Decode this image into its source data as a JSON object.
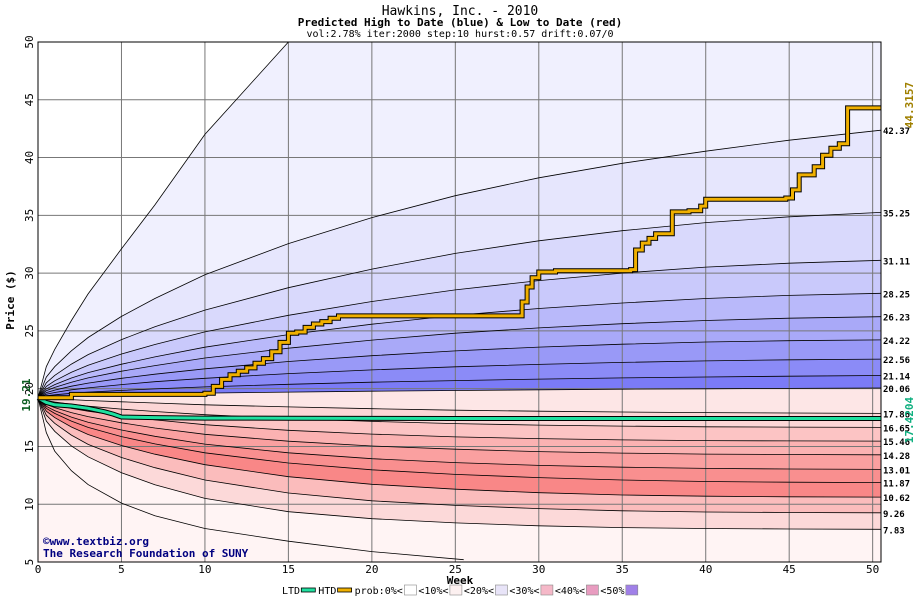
{
  "chart_data": {
    "type": "area",
    "title": "Hawkins, Inc. - 2010",
    "subtitle": "Predicted High to Date (blue) &  Low to Date (red)",
    "params": "vol:2.78% iter:2000 step:10 hurst:0.57 drift:0.07/0",
    "xlabel": "Week",
    "ylabel": "Price ($)",
    "xlim": [
      0,
      50.5
    ],
    "ylim": [
      5,
      50
    ],
    "x_ticks": [
      0,
      5,
      10,
      15,
      20,
      25,
      30,
      35,
      40,
      45,
      50
    ],
    "y_ticks": [
      5,
      10,
      15,
      20,
      25,
      30,
      35,
      40,
      45,
      50
    ],
    "grid": true,
    "start_price": "19.21",
    "htd_final": "44.3157",
    "ltd_final": "17.4204",
    "x_series": [
      0,
      0.5,
      1,
      2,
      3,
      5,
      7,
      10,
      15,
      20,
      25,
      30,
      35,
      40,
      45,
      50.5
    ],
    "high_bands": [
      {
        "end_label": "20.06",
        "values": [
          19.21,
          19.28,
          19.32,
          19.38,
          19.43,
          19.5,
          19.56,
          19.62,
          19.7,
          19.78,
          19.84,
          19.9,
          19.95,
          19.99,
          20.02,
          20.06
        ]
      },
      {
        "end_label": "21.14",
        "values": [
          19.21,
          19.38,
          19.47,
          19.6,
          19.7,
          19.85,
          19.98,
          20.15,
          20.38,
          20.56,
          20.7,
          20.83,
          20.93,
          21.01,
          21.08,
          21.14
        ]
      },
      {
        "end_label": "22.56",
        "values": [
          19.21,
          19.52,
          19.67,
          19.9,
          20.07,
          20.35,
          20.6,
          20.9,
          21.3,
          21.62,
          21.89,
          22.1,
          22.27,
          22.4,
          22.5,
          22.56
        ]
      },
      {
        "end_label": "24.22",
        "values": [
          19.21,
          19.66,
          19.88,
          20.21,
          20.48,
          20.9,
          21.25,
          21.72,
          22.35,
          22.85,
          23.27,
          23.6,
          23.85,
          24.04,
          24.15,
          24.22
        ]
      },
      {
        "end_label": "26.23",
        "values": [
          19.21,
          19.82,
          20.11,
          20.56,
          20.93,
          21.51,
          22.0,
          22.65,
          23.5,
          24.2,
          24.8,
          25.26,
          25.62,
          25.9,
          26.1,
          26.23
        ]
      },
      {
        "end_label": "28.25",
        "values": [
          19.21,
          19.98,
          20.35,
          20.92,
          21.39,
          22.12,
          22.75,
          23.59,
          24.68,
          25.58,
          26.34,
          26.94,
          27.41,
          27.8,
          28.07,
          28.25
        ]
      },
      {
        "end_label": "31.11",
        "values": [
          19.21,
          20.2,
          20.68,
          21.42,
          22.03,
          23.0,
          23.82,
          24.91,
          26.35,
          27.54,
          28.55,
          29.35,
          30.0,
          30.52,
          30.86,
          31.11
        ]
      },
      {
        "end_label": "35.25",
        "values": [
          19.21,
          20.51,
          21.15,
          22.13,
          22.95,
          24.25,
          25.35,
          26.8,
          28.74,
          30.35,
          31.71,
          32.8,
          33.67,
          34.37,
          34.87,
          35.25
        ]
      },
      {
        "end_label": "42.37",
        "values": [
          19.21,
          21.0,
          21.9,
          23.28,
          24.43,
          26.25,
          27.8,
          29.85,
          32.55,
          34.8,
          36.7,
          38.25,
          39.5,
          40.55,
          41.5,
          42.37
        ]
      },
      {
        "end_label": "",
        "values": [
          19.21,
          21.9,
          23.4,
          25.9,
          28.2,
          32.1,
          35.9,
          42.0,
          50.0,
          50.0,
          50.0,
          50.0,
          50.0,
          50.0,
          50.0,
          50.0
        ]
      }
    ],
    "low_bands": [
      {
        "end_label": "17.86",
        "values": [
          19.21,
          19.15,
          19.12,
          19.05,
          18.98,
          18.86,
          18.76,
          18.6,
          18.42,
          18.27,
          18.14,
          18.05,
          17.98,
          17.93,
          17.89,
          17.86
        ]
      },
      {
        "end_label": "16.65",
        "values": [
          19.21,
          18.98,
          18.85,
          18.65,
          18.48,
          18.23,
          18.02,
          17.75,
          17.42,
          17.17,
          16.98,
          16.85,
          16.76,
          16.7,
          16.67,
          16.65
        ]
      },
      {
        "end_label": "15.46",
        "values": [
          19.21,
          18.82,
          18.62,
          18.3,
          18.05,
          17.65,
          17.3,
          16.88,
          16.4,
          16.07,
          15.83,
          15.68,
          15.57,
          15.51,
          15.48,
          15.46
        ]
      },
      {
        "end_label": "14.28",
        "values": [
          19.21,
          18.65,
          18.36,
          17.93,
          17.58,
          17.05,
          16.6,
          16.05,
          15.45,
          15.04,
          14.76,
          14.55,
          14.42,
          14.34,
          14.3,
          14.28
        ]
      },
      {
        "end_label": "13.01",
        "values": [
          19.21,
          18.47,
          18.1,
          17.54,
          17.09,
          16.42,
          15.88,
          15.2,
          14.45,
          13.94,
          13.6,
          13.36,
          13.2,
          13.1,
          13.05,
          13.01
        ]
      },
      {
        "end_label": "11.87",
        "values": [
          19.21,
          18.3,
          17.86,
          17.19,
          16.65,
          15.85,
          15.22,
          14.45,
          13.57,
          12.98,
          12.58,
          12.3,
          12.1,
          11.97,
          11.91,
          11.87
        ]
      },
      {
        "end_label": "10.62",
        "values": [
          19.21,
          18.05,
          17.5,
          16.68,
          16.03,
          15.08,
          14.33,
          13.42,
          12.38,
          11.72,
          11.3,
          11.0,
          10.8,
          10.69,
          10.64,
          10.62
        ]
      },
      {
        "end_label": "9.26",
        "values": [
          19.21,
          17.7,
          17.0,
          15.98,
          15.18,
          14.04,
          13.16,
          12.1,
          10.97,
          10.3,
          9.9,
          9.62,
          9.43,
          9.33,
          9.28,
          9.26
        ]
      },
      {
        "end_label": "7.83",
        "values": [
          19.21,
          17.2,
          16.31,
          15.05,
          14.1,
          12.73,
          11.68,
          10.5,
          9.35,
          8.75,
          8.38,
          8.13,
          7.98,
          7.9,
          7.86,
          7.83
        ]
      }
    ],
    "low_outer": {
      "x": [
        0,
        0.5,
        1,
        2,
        3,
        5,
        7,
        10,
        15,
        20,
        25.5
      ],
      "values": [
        19.21,
        16.2,
        14.6,
        12.9,
        11.7,
        10.1,
        9.0,
        7.9,
        6.8,
        5.9,
        5.2
      ]
    },
    "htd_path": {
      "x": [
        0,
        2,
        10,
        10.5,
        11,
        11.5,
        12,
        12.5,
        13,
        13.5,
        14,
        14.5,
        15,
        15.5,
        16,
        16.5,
        17,
        17.5,
        18,
        22,
        26,
        28.5,
        29,
        29.3,
        29.6,
        30,
        31,
        33,
        35.5,
        35.8,
        36.2,
        36.6,
        37,
        38,
        39,
        39.7,
        40,
        44.8,
        45.2,
        45.6,
        46.5,
        47,
        47.5,
        48,
        48.5,
        50.5
      ],
      "values": [
        19.21,
        19.5,
        19.6,
        20.2,
        20.8,
        21.2,
        21.5,
        21.8,
        22.2,
        22.6,
        23.2,
        24.0,
        24.8,
        24.9,
        25.3,
        25.6,
        25.8,
        26.1,
        26.3,
        26.3,
        26.3,
        26.3,
        27.5,
        28.8,
        29.6,
        30.1,
        30.2,
        30.2,
        30.3,
        32.0,
        32.6,
        33.0,
        33.4,
        35.3,
        35.4,
        35.8,
        36.4,
        36.5,
        37.2,
        38.5,
        39.2,
        40.2,
        40.8,
        41.2,
        44.3,
        44.3
      ]
    },
    "ltd_path": {
      "x": [
        0,
        0.5,
        1,
        2,
        3,
        4,
        4.5,
        5,
        7,
        10,
        15,
        20,
        25,
        30,
        35,
        40,
        45,
        50.5
      ],
      "values": [
        19.21,
        18.8,
        18.6,
        18.5,
        18.3,
        18.0,
        17.8,
        17.55,
        17.5,
        17.45,
        17.44,
        17.43,
        17.42,
        17.42,
        17.42,
        17.42,
        17.42,
        17.42
      ]
    },
    "colors": {
      "high_fills": [
        "#7b7bf7",
        "#8b8bf7",
        "#9999f7",
        "#a9a9f8",
        "#b9b9fa",
        "#c9c9fb",
        "#d9d9fc",
        "#e6e6fd",
        "#f0f0fe"
      ],
      "low_fills": [
        "#fde6e6",
        "#fcd6d6",
        "#fcc4c4",
        "#fbb2b2",
        "#faa0a0",
        "#f98f8f",
        "#f98787",
        "#fbbcbc",
        "#fcd9d9"
      ],
      "low_outer_fill": "#fff4f4",
      "htd": "#f0b000",
      "ltd": "#20e0a0",
      "start_label": "#0b5d20",
      "htd_label": "#a08000",
      "ltd_label": "#10b080",
      "credit": "#000080"
    },
    "credit_lines": [
      "©www.textbiz.org",
      "The Research Foundation of SUNY"
    ],
    "legend": [
      {
        "label": "LTD",
        "swatch": "line",
        "color": "#20e0a0"
      },
      {
        "label": "HTD",
        "swatch": "line",
        "color": "#f0b000"
      },
      {
        "label": "prob:0%<",
        "swatch": "box",
        "color": "#ffffff"
      },
      {
        "label": "<10%<",
        "swatch": "box",
        "color": "#fcf0f0"
      },
      {
        "label": "<20%<",
        "swatch": "box",
        "color": "#e8e4f8"
      },
      {
        "label": "<30%<",
        "swatch": "box",
        "color": "#f5b8c8"
      },
      {
        "label": "<40%<",
        "swatch": "box",
        "color": "#e89cc0"
      },
      {
        "label": "<50%",
        "swatch": "box",
        "color": "#a080e8"
      }
    ]
  }
}
